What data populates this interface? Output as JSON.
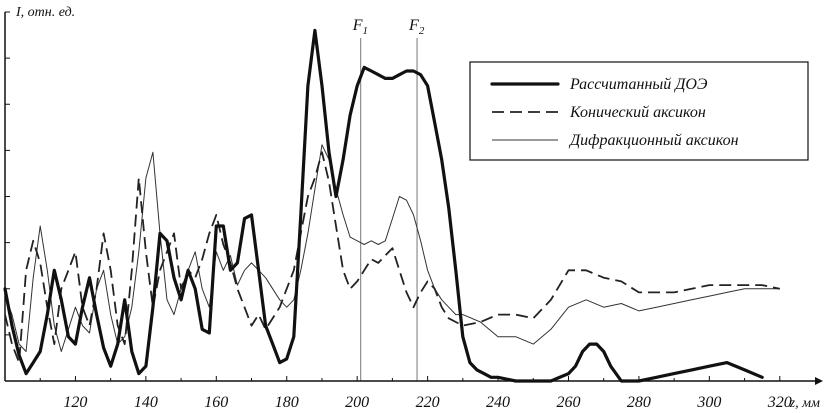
{
  "chart_data": {
    "type": "line",
    "ylabel": "I, отн. ед.",
    "xlabel": "z, мм",
    "xlim": [
      100,
      330
    ],
    "ylim": [
      0,
      1
    ],
    "x_ticks": [
      120,
      140,
      160,
      180,
      200,
      220,
      240,
      260,
      280,
      300,
      320
    ],
    "y_ticks_count": 8,
    "markers": [
      {
        "label": "F",
        "sub": "1",
        "x": 201
      },
      {
        "label": "F",
        "sub": "2",
        "x": 217
      }
    ],
    "legend_position": "top-right",
    "series": [
      {
        "name": "Рассчитанный ДОЭ",
        "style": "thick",
        "x": [
          100,
          102,
          104,
          106,
          108,
          110,
          112,
          114,
          116,
          118,
          120,
          122,
          124,
          126,
          128,
          130,
          132,
          134,
          136,
          138,
          140,
          142,
          144,
          146,
          148,
          150,
          152,
          154,
          156,
          158,
          160,
          162,
          164,
          166,
          168,
          170,
          172,
          174,
          176,
          178,
          180,
          182,
          184,
          186,
          188,
          190,
          192,
          194,
          196,
          198,
          200,
          202,
          204,
          206,
          208,
          210,
          212,
          214,
          216,
          218,
          220,
          222,
          224,
          226,
          228,
          230,
          232,
          234,
          236,
          238,
          240,
          245,
          250,
          255,
          260,
          262,
          264,
          266,
          268,
          270,
          272,
          275,
          280,
          285,
          290,
          295,
          300,
          305,
          310,
          315
        ],
        "y": [
          0.25,
          0.15,
          0.07,
          0.02,
          0.05,
          0.08,
          0.18,
          0.3,
          0.22,
          0.12,
          0.1,
          0.2,
          0.28,
          0.18,
          0.09,
          0.04,
          0.1,
          0.22,
          0.08,
          0.02,
          0.04,
          0.2,
          0.4,
          0.38,
          0.28,
          0.22,
          0.3,
          0.25,
          0.14,
          0.13,
          0.42,
          0.42,
          0.3,
          0.32,
          0.44,
          0.45,
          0.3,
          0.15,
          0.1,
          0.05,
          0.06,
          0.12,
          0.45,
          0.8,
          0.95,
          0.8,
          0.62,
          0.5,
          0.6,
          0.72,
          0.8,
          0.85,
          0.84,
          0.83,
          0.82,
          0.82,
          0.83,
          0.84,
          0.84,
          0.83,
          0.8,
          0.7,
          0.6,
          0.47,
          0.3,
          0.12,
          0.05,
          0.03,
          0.02,
          0.01,
          0.01,
          0.0,
          0.0,
          0.0,
          0.02,
          0.04,
          0.08,
          0.1,
          0.1,
          0.08,
          0.04,
          0.0,
          0.0,
          0.01,
          0.02,
          0.03,
          0.04,
          0.05,
          0.03,
          0.01
        ]
      },
      {
        "name": "Конический аксикон",
        "style": "dashed",
        "x": [
          100,
          102,
          104,
          106,
          108,
          110,
          112,
          114,
          116,
          118,
          120,
          122,
          124,
          126,
          128,
          130,
          132,
          134,
          136,
          138,
          140,
          142,
          144,
          146,
          148,
          150,
          152,
          154,
          156,
          158,
          160,
          162,
          164,
          166,
          168,
          170,
          172,
          174,
          176,
          178,
          180,
          182,
          184,
          186,
          188,
          190,
          192,
          194,
          196,
          198,
          200,
          202,
          204,
          206,
          208,
          210,
          212,
          214,
          216,
          218,
          220,
          222,
          224,
          226,
          228,
          230,
          235,
          240,
          245,
          250,
          255,
          260,
          265,
          270,
          275,
          280,
          285,
          290,
          295,
          300,
          305,
          310,
          315,
          320
        ],
        "y": [
          0.18,
          0.1,
          0.05,
          0.3,
          0.38,
          0.32,
          0.2,
          0.1,
          0.25,
          0.3,
          0.35,
          0.2,
          0.15,
          0.25,
          0.4,
          0.3,
          0.15,
          0.1,
          0.3,
          0.55,
          0.35,
          0.2,
          0.3,
          0.35,
          0.4,
          0.25,
          0.3,
          0.28,
          0.33,
          0.4,
          0.45,
          0.37,
          0.32,
          0.25,
          0.2,
          0.15,
          0.18,
          0.14,
          0.17,
          0.2,
          0.25,
          0.3,
          0.4,
          0.5,
          0.55,
          0.62,
          0.54,
          0.42,
          0.3,
          0.25,
          0.27,
          0.3,
          0.33,
          0.32,
          0.34,
          0.36,
          0.3,
          0.24,
          0.2,
          0.24,
          0.27,
          0.25,
          0.2,
          0.17,
          0.16,
          0.15,
          0.16,
          0.18,
          0.18,
          0.17,
          0.22,
          0.3,
          0.3,
          0.28,
          0.27,
          0.24,
          0.24,
          0.24,
          0.25,
          0.26,
          0.26,
          0.26,
          0.26,
          0.25
        ]
      },
      {
        "name": "Дифракционный аксикон",
        "style": "thin",
        "x": [
          100,
          102,
          104,
          106,
          108,
          110,
          112,
          114,
          116,
          118,
          120,
          122,
          124,
          126,
          128,
          130,
          132,
          134,
          136,
          138,
          140,
          142,
          144,
          146,
          148,
          150,
          152,
          154,
          156,
          158,
          160,
          162,
          164,
          166,
          168,
          170,
          172,
          174,
          176,
          178,
          180,
          182,
          184,
          186,
          188,
          190,
          192,
          194,
          196,
          198,
          200,
          202,
          204,
          206,
          208,
          210,
          212,
          214,
          216,
          218,
          220,
          222,
          224,
          226,
          228,
          230,
          235,
          240,
          245,
          250,
          255,
          260,
          265,
          270,
          275,
          280,
          285,
          290,
          295,
          300,
          305,
          310,
          315,
          320
        ],
        "y": [
          0.23,
          0.18,
          0.1,
          0.08,
          0.28,
          0.42,
          0.3,
          0.15,
          0.08,
          0.14,
          0.2,
          0.15,
          0.13,
          0.25,
          0.3,
          0.18,
          0.1,
          0.12,
          0.2,
          0.35,
          0.55,
          0.62,
          0.4,
          0.22,
          0.18,
          0.25,
          0.3,
          0.35,
          0.25,
          0.2,
          0.35,
          0.3,
          0.34,
          0.26,
          0.3,
          0.32,
          0.3,
          0.28,
          0.25,
          0.22,
          0.2,
          0.22,
          0.3,
          0.4,
          0.52,
          0.64,
          0.6,
          0.52,
          0.45,
          0.39,
          0.38,
          0.37,
          0.38,
          0.37,
          0.38,
          0.44,
          0.5,
          0.49,
          0.45,
          0.38,
          0.3,
          0.25,
          0.22,
          0.2,
          0.18,
          0.18,
          0.16,
          0.12,
          0.12,
          0.1,
          0.14,
          0.2,
          0.22,
          0.2,
          0.21,
          0.19,
          0.2,
          0.21,
          0.22,
          0.23,
          0.24,
          0.25,
          0.25,
          0.25
        ]
      }
    ]
  }
}
